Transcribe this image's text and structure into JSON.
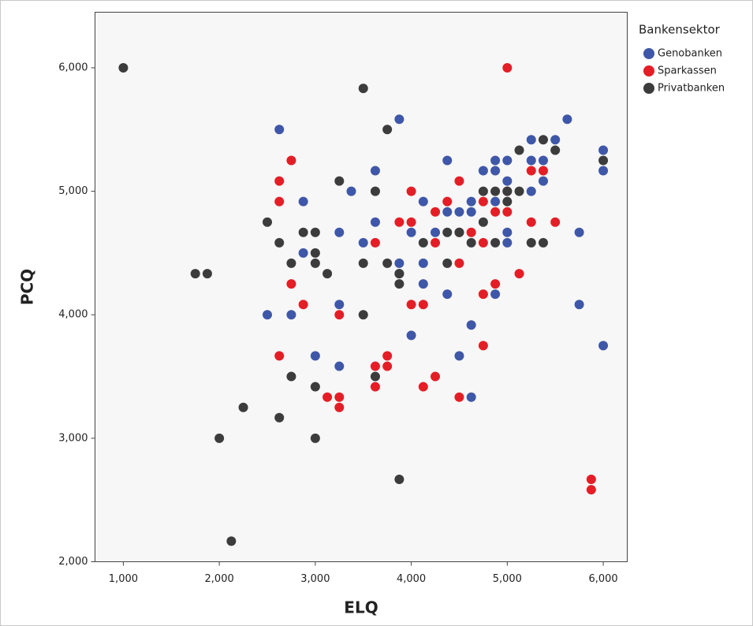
{
  "chart_data": {
    "type": "scatter",
    "x_label": "ELQ",
    "y_label": "PCQ",
    "legend_title": "Bankensektor",
    "legend_position": "right",
    "xlim": [
      705,
      6250
    ],
    "ylim": [
      2000,
      6450
    ],
    "xticks": [
      {
        "value": 1000,
        "label": "1,000"
      },
      {
        "value": 2000,
        "label": "2,000"
      },
      {
        "value": 3000,
        "label": "3,000"
      },
      {
        "value": 4000,
        "label": "4,000"
      },
      {
        "value": 5000,
        "label": "5,000"
      },
      {
        "value": 6000,
        "label": "6,000"
      }
    ],
    "yticks": [
      {
        "value": 2000,
        "label": "2,000"
      },
      {
        "value": 3000,
        "label": "3,000"
      },
      {
        "value": 4000,
        "label": "4,000"
      },
      {
        "value": 5000,
        "label": "5,000"
      },
      {
        "value": 6000,
        "label": "6,000"
      }
    ],
    "series": [
      {
        "name": "Genobanken",
        "color": "#3f57a8",
        "x": [
          2625,
          2875,
          2875,
          2500,
          2750,
          3000,
          3250,
          3250,
          3250,
          3375,
          3500,
          3625,
          3625,
          3875,
          3875,
          3875,
          4000,
          4000,
          4125,
          4125,
          4125,
          4250,
          4375,
          4375,
          4375,
          4500,
          4500,
          4625,
          4625,
          4625,
          4625,
          4750,
          4875,
          4875,
          4875,
          4875,
          5000,
          5000,
          5000,
          5000,
          5250,
          5250,
          5250,
          5375,
          5375,
          5500,
          5625,
          5750,
          5750,
          6000,
          6000,
          6000
        ],
        "values": [
          5500,
          4917,
          4500,
          4000,
          4000,
          3667,
          4667,
          4083,
          3583,
          5000,
          4583,
          5167,
          4750,
          5583,
          4417,
          4333,
          4667,
          3833,
          4917,
          4417,
          4250,
          4667,
          5250,
          4833,
          4167,
          4833,
          3667,
          4917,
          4833,
          3917,
          3333,
          5167,
          5250,
          5167,
          4917,
          4167,
          5250,
          5083,
          4667,
          4583,
          5417,
          5250,
          5000,
          5250,
          5083,
          5417,
          5583,
          4667,
          4083,
          5333,
          5167,
          3750
        ]
      },
      {
        "name": "Sparkassen",
        "color": "#e41e26",
        "x": [
          2625,
          2625,
          2750,
          2750,
          2875,
          3250,
          3125,
          3250,
          3250,
          2625,
          3625,
          3625,
          3625,
          3750,
          3750,
          3875,
          4000,
          4000,
          4000,
          4125,
          4125,
          4250,
          4250,
          4250,
          4375,
          4500,
          4500,
          4500,
          4500,
          4625,
          4750,
          4750,
          4750,
          4750,
          4875,
          4875,
          5000,
          5000,
          5000,
          5125,
          5250,
          5250,
          5375,
          5500,
          5875,
          5875
        ],
        "values": [
          5083,
          4917,
          5250,
          4250,
          4083,
          4000,
          3333,
          3333,
          3250,
          3667,
          4583,
          3583,
          3417,
          3667,
          3583,
          4750,
          5000,
          4750,
          4083,
          4083,
          3417,
          4833,
          4583,
          3500,
          4917,
          5083,
          4667,
          4417,
          3333,
          4667,
          4917,
          4583,
          4167,
          3750,
          4833,
          4250,
          6000,
          4833,
          5000,
          4333,
          5167,
          4750,
          5167,
          4750,
          2667,
          2583
        ]
      },
      {
        "name": "Privatbanken",
        "color": "#3c3c3c",
        "x": [
          1000,
          3500,
          3750,
          1750,
          1875,
          2500,
          2625,
          2875,
          3000,
          3000,
          2750,
          3000,
          3125,
          3250,
          3625,
          3500,
          3750,
          3875,
          3875,
          3500,
          3625,
          2750,
          3000,
          2250,
          2625,
          2000,
          3000,
          3875,
          2125,
          4125,
          4375,
          4375,
          4625,
          4750,
          4750,
          4875,
          5000,
          5000,
          5125,
          5125,
          4875,
          5250,
          5375,
          5375,
          5500,
          6000,
          4500
        ],
        "values": [
          6000,
          5833,
          5500,
          4333,
          4333,
          4750,
          4583,
          4667,
          4667,
          4500,
          4417,
          4417,
          4333,
          5083,
          5000,
          4417,
          4417,
          4333,
          4250,
          4000,
          3500,
          3500,
          3417,
          3250,
          3167,
          3000,
          3000,
          2667,
          2167,
          4583,
          4667,
          4417,
          4583,
          4750,
          5000,
          5000,
          5000,
          4917,
          5000,
          5333,
          4583,
          4583,
          4583,
          5417,
          5333,
          5250,
          4667
        ]
      }
    ]
  }
}
